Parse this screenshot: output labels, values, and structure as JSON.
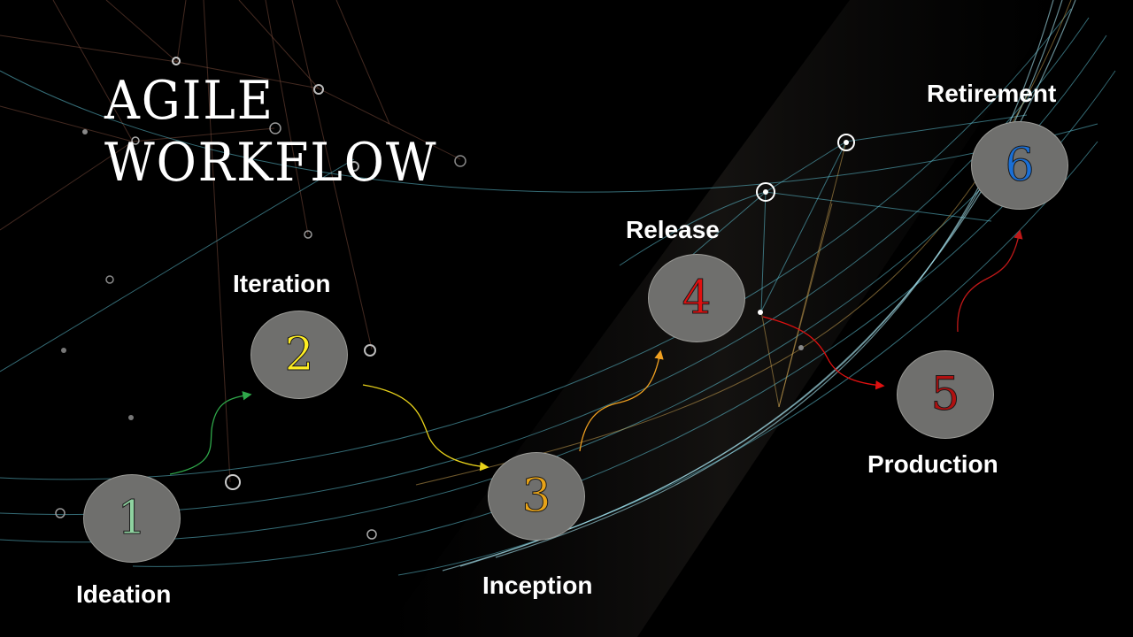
{
  "title": {
    "line1": "AGILE",
    "line2": "WORKFLOW"
  },
  "colors": {
    "background": "#000000",
    "node_fill": "#6f6f6d",
    "label": "#ffffff",
    "arrow_1_2": "#2fa84a",
    "arrow_2_3": "#e8d21a",
    "arrow_3_4": "#f0a020",
    "arrow_4_5": "#e01010",
    "arrow_5_6": "#c01818"
  },
  "steps": [
    {
      "number": "1",
      "label": "Ideation",
      "color": "#8fd3a0"
    },
    {
      "number": "2",
      "label": "Iteration",
      "color": "#ffee22"
    },
    {
      "number": "3",
      "label": "Inception",
      "color": "#e8a317"
    },
    {
      "number": "4",
      "label": "Release",
      "color": "#e01010"
    },
    {
      "number": "5",
      "label": "Production",
      "color": "#b01010"
    },
    {
      "number": "6",
      "label": "Retirement",
      "color": "#1a6fd6"
    }
  ]
}
